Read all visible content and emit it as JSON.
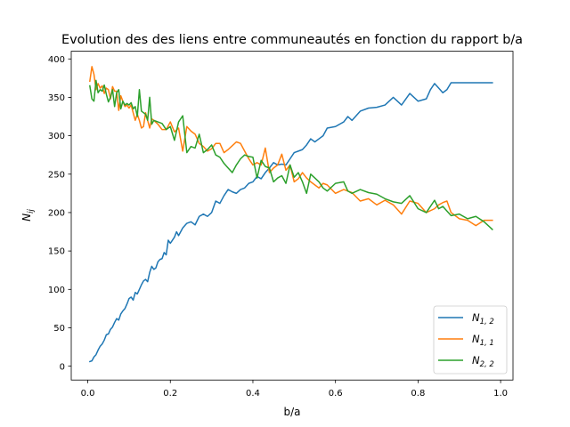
{
  "chart_data": {
    "type": "line",
    "title": "Evolution des des liens entre communeautés en fonction du rapport b/a",
    "xlabel": "b/a",
    "ylabel": "N_ij",
    "ylabel_main": "N",
    "ylabel_sub": "ij",
    "xlim": [
      -0.04,
      1.03
    ],
    "ylim": [
      -18,
      410
    ],
    "x_ticks": [
      0.0,
      0.2,
      0.4,
      0.6,
      0.8,
      1.0
    ],
    "x_tick_labels": [
      "0.0",
      "0.2",
      "0.4",
      "0.6",
      "0.8",
      "1.0"
    ],
    "y_ticks": [
      0,
      50,
      100,
      150,
      200,
      250,
      300,
      350,
      400
    ],
    "y_tick_labels": [
      "0",
      "50",
      "100",
      "150",
      "200",
      "250",
      "300",
      "350",
      "400"
    ],
    "grid": false,
    "legend_position": "lower-right",
    "series": [
      {
        "name": "N_{1,2}",
        "label_main": "N",
        "label_sub": "1, 2",
        "color": "#1f77b4",
        "x": [
          0.005,
          0.01,
          0.015,
          0.02,
          0.025,
          0.03,
          0.035,
          0.04,
          0.045,
          0.05,
          0.055,
          0.06,
          0.065,
          0.07,
          0.075,
          0.08,
          0.085,
          0.09,
          0.095,
          0.1,
          0.105,
          0.11,
          0.115,
          0.12,
          0.125,
          0.13,
          0.135,
          0.14,
          0.145,
          0.15,
          0.155,
          0.16,
          0.165,
          0.17,
          0.175,
          0.18,
          0.185,
          0.19,
          0.195,
          0.2,
          0.205,
          0.21,
          0.215,
          0.22,
          0.23,
          0.24,
          0.25,
          0.26,
          0.27,
          0.28,
          0.29,
          0.3,
          0.31,
          0.32,
          0.33,
          0.34,
          0.35,
          0.36,
          0.37,
          0.38,
          0.39,
          0.4,
          0.41,
          0.42,
          0.43,
          0.44,
          0.45,
          0.46,
          0.47,
          0.48,
          0.49,
          0.5,
          0.51,
          0.52,
          0.53,
          0.54,
          0.55,
          0.56,
          0.57,
          0.58,
          0.6,
          0.62,
          0.63,
          0.64,
          0.66,
          0.68,
          0.7,
          0.72,
          0.74,
          0.75,
          0.76,
          0.78,
          0.8,
          0.82,
          0.83,
          0.84,
          0.85,
          0.86,
          0.87,
          0.88,
          0.9,
          0.92,
          0.94,
          0.96,
          0.98
        ],
        "y": [
          6,
          7,
          12,
          15,
          21,
          26,
          29,
          34,
          41,
          42,
          48,
          51,
          57,
          62,
          60,
          68,
          72,
          75,
          81,
          88,
          90,
          86,
          96,
          94,
          100,
          106,
          111,
          113,
          110,
          122,
          130,
          126,
          128,
          136,
          139,
          140,
          148,
          145,
          164,
          160,
          164,
          168,
          175,
          170,
          180,
          186,
          188,
          184,
          195,
          198,
          195,
          200,
          215,
          212,
          222,
          230,
          227,
          225,
          230,
          232,
          238,
          240,
          247,
          244,
          252,
          258,
          265,
          262,
          263,
          262,
          270,
          278,
          280,
          282,
          288,
          296,
          292,
          296,
          300,
          310,
          312,
          318,
          325,
          320,
          332,
          336,
          337,
          340,
          350,
          345,
          340,
          355,
          345,
          348,
          360,
          368,
          362,
          356,
          360,
          369,
          369,
          369,
          369,
          369,
          369
        ]
      },
      {
        "name": "N_{1,1}",
        "label_main": "N",
        "label_sub": "1, 1",
        "color": "#ff7f0e",
        "x": [
          0.005,
          0.01,
          0.015,
          0.02,
          0.025,
          0.03,
          0.035,
          0.04,
          0.045,
          0.05,
          0.055,
          0.06,
          0.065,
          0.07,
          0.075,
          0.08,
          0.085,
          0.09,
          0.095,
          0.1,
          0.105,
          0.11,
          0.115,
          0.12,
          0.125,
          0.13,
          0.135,
          0.14,
          0.145,
          0.15,
          0.155,
          0.16,
          0.17,
          0.18,
          0.19,
          0.2,
          0.21,
          0.22,
          0.23,
          0.24,
          0.25,
          0.26,
          0.27,
          0.28,
          0.29,
          0.3,
          0.31,
          0.32,
          0.33,
          0.34,
          0.35,
          0.36,
          0.37,
          0.38,
          0.39,
          0.4,
          0.41,
          0.42,
          0.43,
          0.44,
          0.45,
          0.46,
          0.47,
          0.48,
          0.49,
          0.5,
          0.51,
          0.52,
          0.53,
          0.54,
          0.55,
          0.56,
          0.57,
          0.58,
          0.6,
          0.62,
          0.63,
          0.64,
          0.66,
          0.68,
          0.7,
          0.72,
          0.74,
          0.76,
          0.78,
          0.8,
          0.82,
          0.84,
          0.85,
          0.86,
          0.87,
          0.88,
          0.9,
          0.92,
          0.94,
          0.96,
          0.98
        ],
        "y": [
          371,
          390,
          380,
          360,
          368,
          362,
          365,
          355,
          362,
          360,
          348,
          364,
          358,
          358,
          333,
          352,
          345,
          338,
          340,
          336,
          340,
          330,
          320,
          328,
          320,
          310,
          312,
          330,
          320,
          310,
          322,
          320,
          315,
          308,
          308,
          318,
          305,
          310,
          280,
          312,
          306,
          302,
          290,
          286,
          280,
          283,
          290,
          290,
          278,
          282,
          287,
          292,
          290,
          280,
          270,
          262,
          265,
          262,
          284,
          252,
          258,
          262,
          276,
          255,
          262,
          240,
          244,
          252,
          245,
          240,
          236,
          232,
          238,
          236,
          225,
          230,
          228,
          226,
          215,
          218,
          210,
          216,
          210,
          198,
          215,
          212,
          200,
          205,
          210,
          213,
          215,
          200,
          192,
          190,
          183,
          190,
          190
        ]
      },
      {
        "name": "N_{2,2}",
        "label_main": "N",
        "label_sub": "2, 2",
        "color": "#2ca02c",
        "x": [
          0.005,
          0.01,
          0.015,
          0.02,
          0.025,
          0.03,
          0.035,
          0.04,
          0.045,
          0.05,
          0.055,
          0.06,
          0.065,
          0.07,
          0.075,
          0.08,
          0.085,
          0.09,
          0.095,
          0.1,
          0.105,
          0.11,
          0.115,
          0.12,
          0.125,
          0.13,
          0.135,
          0.14,
          0.145,
          0.15,
          0.155,
          0.16,
          0.17,
          0.18,
          0.19,
          0.2,
          0.21,
          0.22,
          0.23,
          0.24,
          0.25,
          0.26,
          0.27,
          0.28,
          0.29,
          0.3,
          0.31,
          0.32,
          0.33,
          0.34,
          0.35,
          0.36,
          0.37,
          0.38,
          0.39,
          0.4,
          0.41,
          0.42,
          0.43,
          0.44,
          0.45,
          0.46,
          0.47,
          0.48,
          0.49,
          0.5,
          0.51,
          0.52,
          0.53,
          0.54,
          0.55,
          0.56,
          0.57,
          0.58,
          0.6,
          0.62,
          0.63,
          0.64,
          0.66,
          0.68,
          0.7,
          0.72,
          0.74,
          0.76,
          0.78,
          0.8,
          0.82,
          0.84,
          0.85,
          0.86,
          0.87,
          0.88,
          0.9,
          0.92,
          0.94,
          0.96,
          0.98
        ],
        "y": [
          365,
          348,
          345,
          372,
          356,
          360,
          358,
          366,
          354,
          344,
          350,
          360,
          338,
          356,
          360,
          335,
          345,
          340,
          342,
          340,
          343,
          335,
          338,
          325,
          360,
          332,
          330,
          328,
          320,
          350,
          315,
          320,
          318,
          316,
          308,
          312,
          294,
          318,
          326,
          278,
          286,
          284,
          302,
          278,
          282,
          288,
          275,
          272,
          264,
          258,
          252,
          262,
          270,
          275,
          273,
          272,
          245,
          268,
          260,
          258,
          240,
          245,
          248,
          238,
          262,
          246,
          252,
          240,
          225,
          250,
          245,
          240,
          232,
          228,
          238,
          240,
          228,
          225,
          230,
          226,
          224,
          218,
          214,
          212,
          222,
          205,
          200,
          216,
          205,
          208,
          202,
          196,
          198,
          192,
          195,
          188,
          178
        ]
      }
    ]
  }
}
